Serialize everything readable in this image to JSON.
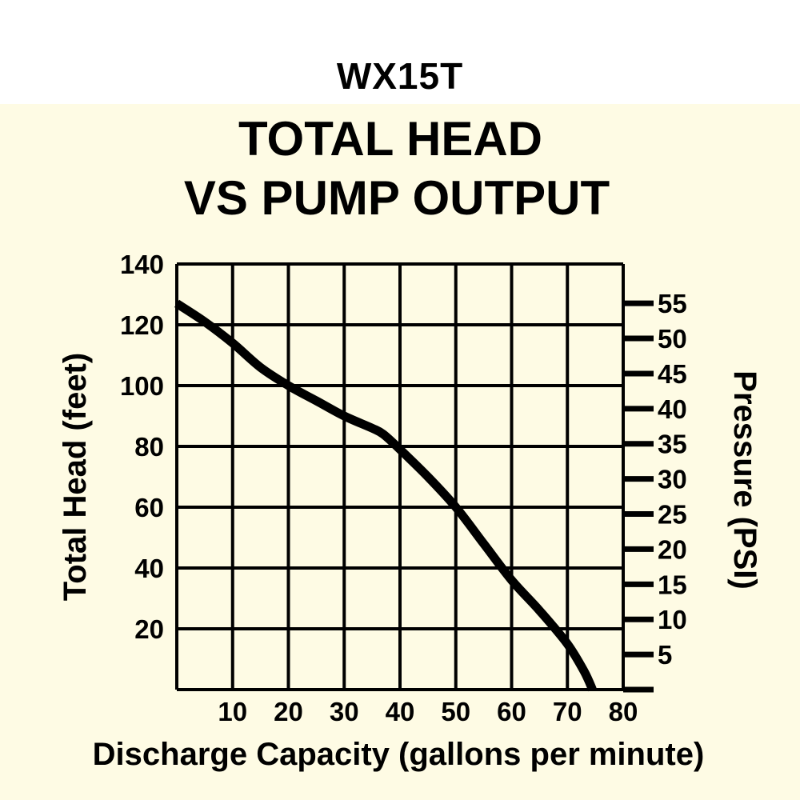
{
  "model": "WX15T",
  "chart_data": {
    "type": "line",
    "title_lines": [
      "TOTAL HEAD",
      "VS PUMP OUTPUT"
    ],
    "xlabel": "Discharge Capacity (gallons per minute)",
    "ylabel": "Total Head (feet)",
    "y2label": "Pressure (PSI)",
    "xlim": [
      0,
      80
    ],
    "ylim": [
      0,
      140
    ],
    "y2lim": [
      0,
      60.6
    ],
    "x_ticks": [
      10,
      20,
      30,
      40,
      50,
      60,
      70,
      80
    ],
    "y_ticks": [
      20,
      40,
      60,
      80,
      100,
      120,
      140
    ],
    "y2_ticks": [
      5,
      10,
      15,
      20,
      25,
      30,
      35,
      40,
      45,
      50,
      55
    ],
    "grid": true,
    "series": [
      {
        "x": [
          0,
          5,
          10,
          15,
          20,
          25,
          30,
          35,
          37,
          40,
          45,
          50,
          55,
          60,
          65,
          70,
          73,
          74.5
        ],
        "y": [
          127,
          121,
          114,
          106,
          100,
          95,
          90,
          86,
          84,
          79,
          70,
          60,
          48,
          36,
          26,
          15,
          6,
          0
        ]
      }
    ]
  }
}
